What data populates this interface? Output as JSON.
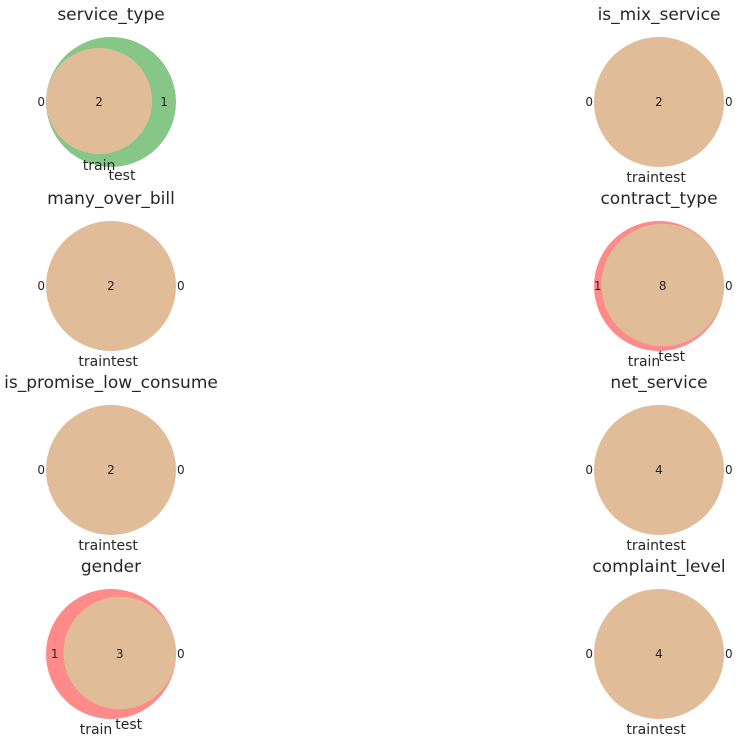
{
  "chart_data": [
    {
      "type": "venn",
      "title": "service_type",
      "set_labels": [
        "train",
        "test"
      ],
      "counts": {
        "train_only": 0,
        "both": 2,
        "test_only": 1
      }
    },
    {
      "type": "venn",
      "title": "is_mix_service",
      "set_labels": [
        "train",
        "test"
      ],
      "counts": {
        "train_only": 0,
        "both": 2,
        "test_only": 0
      }
    },
    {
      "type": "venn",
      "title": "many_over_bill",
      "set_labels": [
        "train",
        "test"
      ],
      "counts": {
        "train_only": 0,
        "both": 2,
        "test_only": 0
      }
    },
    {
      "type": "venn",
      "title": "contract_type",
      "set_labels": [
        "train",
        "test"
      ],
      "counts": {
        "train_only": 1,
        "both": 8,
        "test_only": 0
      }
    },
    {
      "type": "venn",
      "title": "is_promise_low_consume",
      "set_labels": [
        "train",
        "test"
      ],
      "counts": {
        "train_only": 0,
        "both": 2,
        "test_only": 0
      }
    },
    {
      "type": "venn",
      "title": "net_service",
      "set_labels": [
        "train",
        "test"
      ],
      "counts": {
        "train_only": 0,
        "both": 4,
        "test_only": 0
      }
    },
    {
      "type": "venn",
      "title": "gender",
      "set_labels": [
        "train",
        "test"
      ],
      "counts": {
        "train_only": 1,
        "both": 3,
        "test_only": 0
      }
    },
    {
      "type": "venn",
      "title": "complaint_level",
      "set_labels": [
        "train",
        "test"
      ],
      "counts": {
        "train_only": 0,
        "both": 4,
        "test_only": 0
      }
    }
  ],
  "colors": {
    "train": "#ff8a8a",
    "test": "#86c686",
    "overlap": "#e0bc98"
  }
}
